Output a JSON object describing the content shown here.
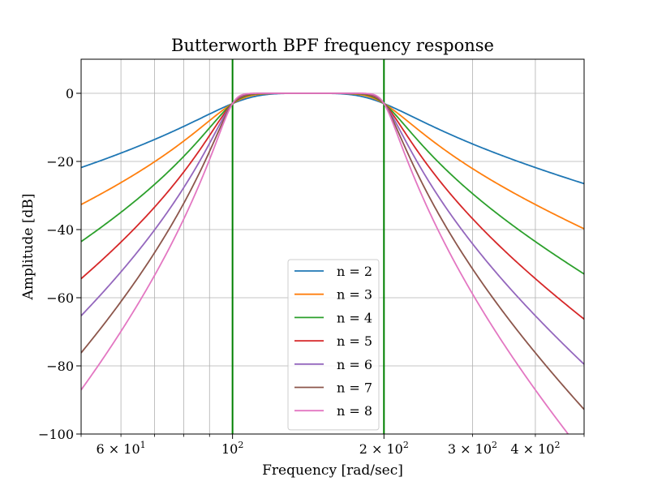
{
  "chart_data": {
    "type": "line",
    "title": "Butterworth BPF frequency response",
    "xlabel": "Frequency [rad/sec]",
    "ylabel": "Amplitude [dB]",
    "xscale": "log",
    "xlim": [
      50,
      500
    ],
    "ylim": [
      -100,
      10
    ],
    "grid": true,
    "legend_position": "lower center",
    "passband": {
      "low": 100,
      "high": 200
    },
    "cutoff_line_color": "#008000",
    "x_tick_labels": [
      {
        "value": 60,
        "base": "6 × 10",
        "exp": "1"
      },
      {
        "value": 100,
        "base": "10",
        "exp": "2"
      },
      {
        "value": 200,
        "base": "2 × 10",
        "exp": "2"
      },
      {
        "value": 300,
        "base": "3 × 10",
        "exp": "2"
      },
      {
        "value": 400,
        "base": "4 × 10",
        "exp": "2"
      }
    ],
    "y_ticks": [
      0,
      -20,
      -40,
      -60,
      -80,
      -100
    ],
    "y_tick_labels": [
      "0",
      "−20",
      "−40",
      "−60",
      "−80",
      "−100"
    ],
    "x_minor_grid": [
      50,
      60,
      70,
      80,
      90,
      300,
      400,
      500
    ],
    "series": [
      {
        "name": "n = 2",
        "order": 2,
        "color": "#1f77b4"
      },
      {
        "name": "n = 3",
        "order": 3,
        "color": "#ff7f0e"
      },
      {
        "name": "n = 4",
        "order": 4,
        "color": "#2ca02c"
      },
      {
        "name": "n = 5",
        "order": 5,
        "color": "#d62728"
      },
      {
        "name": "n = 6",
        "order": 6,
        "color": "#9467bd"
      },
      {
        "name": "n = 7",
        "order": 7,
        "color": "#8c564b"
      },
      {
        "name": "n = 8",
        "order": 8,
        "color": "#e377c2"
      }
    ]
  }
}
